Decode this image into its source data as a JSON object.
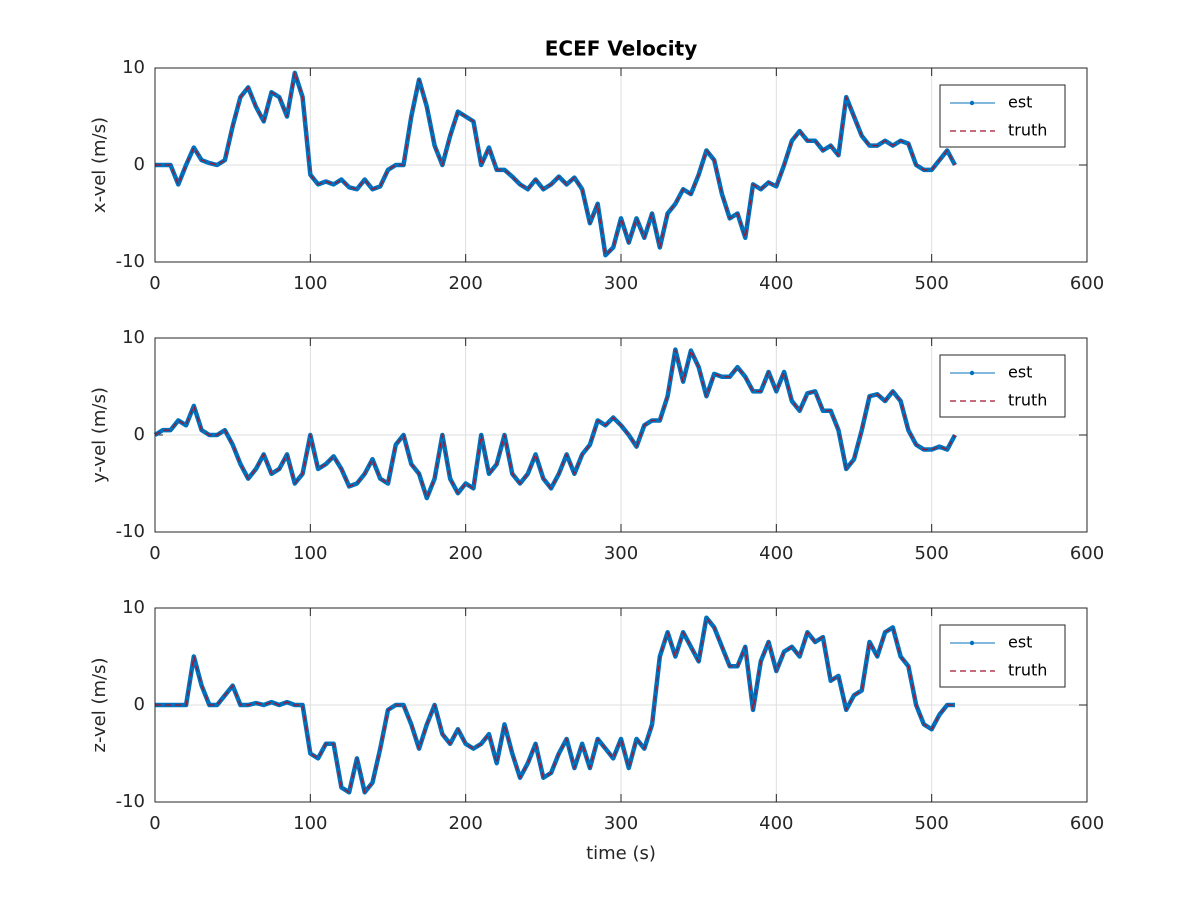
{
  "chart_data": [
    {
      "type": "line",
      "title": "ECEF Velocity",
      "ylabel": "x-vel (m/s)",
      "xlim": [
        0,
        600
      ],
      "xticks": [
        0,
        100,
        200,
        300,
        400,
        500,
        600
      ],
      "ylim": [
        -10,
        10
      ],
      "yticks": [
        -10,
        0,
        10
      ],
      "grid": true,
      "legend": "northeast",
      "x": [
        0,
        5,
        10,
        15,
        20,
        25,
        30,
        35,
        40,
        45,
        50,
        55,
        60,
        65,
        70,
        75,
        80,
        85,
        90,
        95,
        100,
        105,
        110,
        115,
        120,
        125,
        130,
        135,
        140,
        145,
        150,
        155,
        160,
        165,
        170,
        175,
        180,
        185,
        190,
        195,
        200,
        205,
        210,
        215,
        220,
        225,
        230,
        235,
        240,
        245,
        250,
        255,
        260,
        265,
        270,
        275,
        280,
        285,
        290,
        295,
        300,
        305,
        310,
        315,
        320,
        325,
        330,
        335,
        340,
        345,
        350,
        355,
        360,
        365,
        370,
        375,
        380,
        385,
        390,
        395,
        400,
        405,
        410,
        415,
        420,
        425,
        430,
        435,
        440,
        445,
        450,
        455,
        460,
        465,
        470,
        475,
        480,
        485,
        490,
        495,
        500,
        505,
        510,
        515
      ],
      "series": [
        {
          "name": "est",
          "color": "#0072BD",
          "values": [
            0,
            0,
            0,
            -2,
            0,
            1.8,
            0.5,
            0.2,
            0,
            0.5,
            4,
            7,
            8,
            6,
            4.5,
            7.5,
            7,
            5,
            9.5,
            7,
            -1,
            -2,
            -1.7,
            -2,
            -1.5,
            -2.3,
            -2.5,
            -1.5,
            -2.5,
            -2.2,
            -0.5,
            0,
            0,
            5,
            8.8,
            6,
            2,
            0,
            3,
            5.5,
            5,
            4.5,
            0,
            1.8,
            -0.5,
            -0.5,
            -1.2,
            -2,
            -2.5,
            -1.5,
            -2.5,
            -2,
            -1.2,
            -2,
            -1.3,
            -2.5,
            -6,
            -4,
            -9.3,
            -8.5,
            -5.5,
            -8,
            -5.5,
            -7.5,
            -5,
            -8.5,
            -5,
            -4,
            -2.5,
            -3,
            -1,
            1.5,
            0.5,
            -3,
            -5.5,
            -5,
            -7.5,
            -2,
            -2.5,
            -1.8,
            -2.2,
            0,
            2.5,
            3.5,
            2.5,
            2.5,
            1.5,
            2,
            1,
            7,
            5,
            3,
            2,
            2,
            2.5,
            2,
            2.5,
            2.2,
            0,
            -0.5,
            -0.5,
            0.5,
            1.5,
            0
          ]
        },
        {
          "name": "truth",
          "color": "#A2142F",
          "values": [
            0,
            0,
            0,
            -2,
            0,
            1.8,
            0.5,
            0.2,
            0,
            0.5,
            4,
            7,
            8,
            6,
            4.5,
            7.5,
            7,
            5,
            9.5,
            7,
            -1,
            -2,
            -1.7,
            -2,
            -1.5,
            -2.3,
            -2.5,
            -1.5,
            -2.5,
            -2.2,
            -0.5,
            0,
            0,
            5,
            8.8,
            6,
            2,
            0,
            3,
            5.5,
            5,
            4.5,
            0,
            1.8,
            -0.5,
            -0.5,
            -1.2,
            -2,
            -2.5,
            -1.5,
            -2.5,
            -2,
            -1.2,
            -2,
            -1.3,
            -2.5,
            -6,
            -4,
            -9.3,
            -8.5,
            -5.5,
            -8,
            -5.5,
            -7.5,
            -5,
            -8.5,
            -5,
            -4,
            -2.5,
            -3,
            -1,
            1.5,
            0.5,
            -3,
            -5.5,
            -5,
            -7.5,
            -2,
            -2.5,
            -1.8,
            -2.2,
            0,
            2.5,
            3.5,
            2.5,
            2.5,
            1.5,
            2,
            1,
            7,
            5,
            3,
            2,
            2,
            2.5,
            2,
            2.5,
            2.2,
            0,
            -0.5,
            -0.5,
            0.5,
            1.5,
            0
          ]
        }
      ]
    },
    {
      "type": "line",
      "ylabel": "y-vel (m/s)",
      "xlim": [
        0,
        600
      ],
      "xticks": [
        0,
        100,
        200,
        300,
        400,
        500,
        600
      ],
      "ylim": [
        -10,
        10
      ],
      "yticks": [
        -10,
        0,
        10
      ],
      "grid": true,
      "legend": "northeast",
      "x": [
        0,
        5,
        10,
        15,
        20,
        25,
        30,
        35,
        40,
        45,
        50,
        55,
        60,
        65,
        70,
        75,
        80,
        85,
        90,
        95,
        100,
        105,
        110,
        115,
        120,
        125,
        130,
        135,
        140,
        145,
        150,
        155,
        160,
        165,
        170,
        175,
        180,
        185,
        190,
        195,
        200,
        205,
        210,
        215,
        220,
        225,
        230,
        235,
        240,
        245,
        250,
        255,
        260,
        265,
        270,
        275,
        280,
        285,
        290,
        295,
        300,
        305,
        310,
        315,
        320,
        325,
        330,
        335,
        340,
        345,
        350,
        355,
        360,
        365,
        370,
        375,
        380,
        385,
        390,
        395,
        400,
        405,
        410,
        415,
        420,
        425,
        430,
        435,
        440,
        445,
        450,
        455,
        460,
        465,
        470,
        475,
        480,
        485,
        490,
        495,
        500,
        505,
        510,
        515
      ],
      "series": [
        {
          "name": "est",
          "color": "#0072BD",
          "values": [
            0,
            0.5,
            0.5,
            1.5,
            1,
            3,
            0.5,
            0,
            0,
            0.5,
            -1,
            -3,
            -4.5,
            -3.5,
            -2,
            -4,
            -3.5,
            -2,
            -5,
            -4,
            0,
            -3.5,
            -3,
            -2.2,
            -3.5,
            -5.3,
            -5,
            -4,
            -2.5,
            -4.5,
            -5,
            -1,
            0,
            -3,
            -4,
            -6.5,
            -4.5,
            0,
            -4.5,
            -6,
            -5,
            -5.5,
            0,
            -4,
            -3,
            0,
            -4,
            -5,
            -4,
            -2,
            -4.5,
            -5.5,
            -4,
            -2,
            -4,
            -2,
            -1,
            1.5,
            1,
            1.8,
            1,
            0,
            -1.2,
            1,
            1.5,
            1.5,
            4,
            8.8,
            5.5,
            8.7,
            7,
            4,
            6.3,
            6,
            6,
            7,
            6,
            4.5,
            4.5,
            6.5,
            4.5,
            6.5,
            3.5,
            2.5,
            4.3,
            4.5,
            2.5,
            2.5,
            0.5,
            -3.5,
            -2.5,
            0.5,
            4,
            4.2,
            3.5,
            4.5,
            3.5,
            0.5,
            -1,
            -1.5,
            -1.5,
            -1.2,
            -1.5,
            0
          ]
        },
        {
          "name": "truth",
          "color": "#A2142F",
          "values": [
            0,
            0.5,
            0.5,
            1.5,
            1,
            3,
            0.5,
            0,
            0,
            0.5,
            -1,
            -3,
            -4.5,
            -3.5,
            -2,
            -4,
            -3.5,
            -2,
            -5,
            -4,
            0,
            -3.5,
            -3,
            -2.2,
            -3.5,
            -5.3,
            -5,
            -4,
            -2.5,
            -4.5,
            -5,
            -1,
            0,
            -3,
            -4,
            -6.5,
            -4.5,
            0,
            -4.5,
            -6,
            -5,
            -5.5,
            0,
            -4,
            -3,
            0,
            -4,
            -5,
            -4,
            -2,
            -4.5,
            -5.5,
            -4,
            -2,
            -4,
            -2,
            -1,
            1.5,
            1,
            1.8,
            1,
            0,
            -1.2,
            1,
            1.5,
            1.5,
            4,
            8.8,
            5.5,
            8.7,
            7,
            4,
            6.3,
            6,
            6,
            7,
            6,
            4.5,
            4.5,
            6.5,
            4.5,
            6.5,
            3.5,
            2.5,
            4.3,
            4.5,
            2.5,
            2.5,
            0.5,
            -3.5,
            -2.5,
            0.5,
            4,
            4.2,
            3.5,
            4.5,
            3.5,
            0.5,
            -1,
            -1.5,
            -1.5,
            -1.2,
            -1.5,
            0
          ]
        }
      ]
    },
    {
      "type": "line",
      "ylabel": "z-vel (m/s)",
      "xlabel": "time (s)",
      "xlim": [
        0,
        600
      ],
      "xticks": [
        0,
        100,
        200,
        300,
        400,
        500,
        600
      ],
      "ylim": [
        -10,
        10
      ],
      "yticks": [
        -10,
        0,
        10
      ],
      "grid": true,
      "legend": "northeast",
      "x": [
        0,
        5,
        10,
        15,
        20,
        25,
        30,
        35,
        40,
        45,
        50,
        55,
        60,
        65,
        70,
        75,
        80,
        85,
        90,
        95,
        100,
        105,
        110,
        115,
        120,
        125,
        130,
        135,
        140,
        145,
        150,
        155,
        160,
        165,
        170,
        175,
        180,
        185,
        190,
        195,
        200,
        205,
        210,
        215,
        220,
        225,
        230,
        235,
        240,
        245,
        250,
        255,
        260,
        265,
        270,
        275,
        280,
        285,
        290,
        295,
        300,
        305,
        310,
        315,
        320,
        325,
        330,
        335,
        340,
        345,
        350,
        355,
        360,
        365,
        370,
        375,
        380,
        385,
        390,
        395,
        400,
        405,
        410,
        415,
        420,
        425,
        430,
        435,
        440,
        445,
        450,
        455,
        460,
        465,
        470,
        475,
        480,
        485,
        490,
        495,
        500,
        505,
        510,
        515
      ],
      "series": [
        {
          "name": "est",
          "color": "#0072BD",
          "values": [
            0,
            0,
            0,
            0,
            0,
            5,
            2,
            0,
            0,
            1,
            2,
            0,
            0,
            0.2,
            0,
            0.3,
            0,
            0.3,
            0,
            0,
            -5,
            -5.5,
            -4,
            -4,
            -8.5,
            -9,
            -5.5,
            -9,
            -8,
            -4.5,
            -0.5,
            0,
            0,
            -2,
            -4.5,
            -2,
            0,
            -3,
            -4,
            -2.5,
            -4,
            -4.5,
            -4,
            -3,
            -6,
            -2,
            -5,
            -7.5,
            -6,
            -4,
            -7.5,
            -7,
            -5,
            -3.5,
            -6.5,
            -4,
            -6.5,
            -3.5,
            -4.5,
            -5.5,
            -3.5,
            -6.5,
            -3.5,
            -4.5,
            -2,
            5,
            7.5,
            5,
            7.5,
            6,
            4.5,
            9,
            8,
            6,
            4,
            4,
            6,
            -0.5,
            4.5,
            6.5,
            3.5,
            5.5,
            6,
            5,
            7.5,
            6.5,
            7,
            2.5,
            3,
            -0.5,
            1,
            1.5,
            6.5,
            5,
            7.5,
            8,
            5,
            4,
            0,
            -2,
            -2.5,
            -1,
            0,
            0
          ]
        },
        {
          "name": "truth",
          "color": "#A2142F",
          "values": [
            0,
            0,
            0,
            0,
            0,
            5,
            2,
            0,
            0,
            1,
            2,
            0,
            0,
            0.2,
            0,
            0.3,
            0,
            0.3,
            0,
            0,
            -5,
            -5.5,
            -4,
            -4,
            -8.5,
            -9,
            -5.5,
            -9,
            -8,
            -4.5,
            -0.5,
            0,
            0,
            -2,
            -4.5,
            -2,
            0,
            -3,
            -4,
            -2.5,
            -4,
            -4.5,
            -4,
            -3,
            -6,
            -2,
            -5,
            -7.5,
            -6,
            -4,
            -7.5,
            -7,
            -5,
            -3.5,
            -6.5,
            -4,
            -6.5,
            -3.5,
            -4.5,
            -5.5,
            -3.5,
            -6.5,
            -3.5,
            -4.5,
            -2,
            5,
            7.5,
            5,
            7.5,
            6,
            4.5,
            9,
            8,
            6,
            4,
            4,
            6,
            -0.5,
            4.5,
            6.5,
            3.5,
            5.5,
            6,
            5,
            7.5,
            6.5,
            7,
            2.5,
            3,
            -0.5,
            1,
            1.5,
            6.5,
            5,
            7.5,
            8,
            5,
            4,
            0,
            -2,
            -2.5,
            -1,
            0,
            0
          ]
        }
      ]
    }
  ]
}
